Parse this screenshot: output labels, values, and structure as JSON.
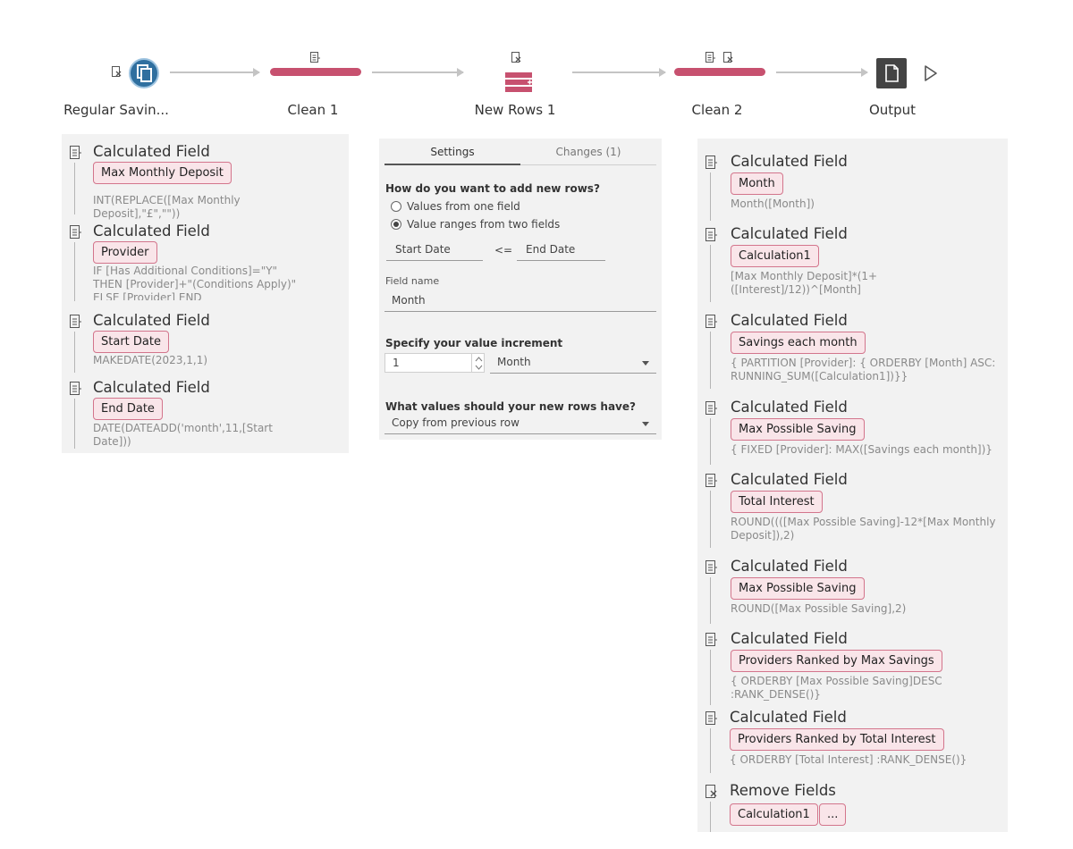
{
  "flow": {
    "nodes": [
      {
        "label": "Regular Savin..."
      },
      {
        "label": "Clean 1"
      },
      {
        "label": "New Rows 1"
      },
      {
        "label": "Clean 2"
      },
      {
        "label": "Output"
      }
    ]
  },
  "clean1": {
    "steps": [
      {
        "title": "Calculated Field",
        "pill": "Max Monthly Deposit",
        "formula": "INT(REPLACE([Max Monthly\nDeposit],\"£\",\"\"))"
      },
      {
        "title": "Calculated Field",
        "pill": "Provider",
        "formula": "IF [Has Additional Conditions]=\"Y\"\nTHEN [Provider]+\"(Conditions Apply)\"\nELSE [Provider] END"
      },
      {
        "title": "Calculated Field",
        "pill": "Start Date",
        "formula": "MAKEDATE(2023,1,1)"
      },
      {
        "title": "Calculated Field",
        "pill": "End Date",
        "formula": "DATE(DATEADD('month',11,[Start\nDate]))"
      }
    ]
  },
  "newrows": {
    "tabs": {
      "settings": "Settings",
      "changes": "Changes (1)"
    },
    "question_add": "How do you want to add new rows?",
    "option_one_field": "Values from one field",
    "option_two_fields": "Value ranges from two fields",
    "start_field": "Start Date",
    "operator": "<=",
    "end_field": "End Date",
    "field_name_label": "Field name",
    "field_name_value": "Month",
    "increment_label": "Specify your value increment",
    "increment_value": "1",
    "increment_unit": "Month",
    "values_question": "What values should your new rows have?",
    "values_option": "Copy from previous row"
  },
  "clean2": {
    "steps": [
      {
        "title": "Calculated Field",
        "pill": "Month",
        "formula": "Month([Month])"
      },
      {
        "title": "Calculated Field",
        "pill": "Calculation1",
        "formula": "[Max Monthly Deposit]*(1+\n([Interest]/12))^[Month]"
      },
      {
        "title": "Calculated Field",
        "pill": "Savings each month",
        "formula": "{ PARTITION [Provider]: { ORDERBY [Month] ASC:\nRUNNING_SUM([Calculation1])}}"
      },
      {
        "title": "Calculated Field",
        "pill": "Max Possible Saving",
        "formula": "{ FIXED [Provider]: MAX([Savings each month])}"
      },
      {
        "title": "Calculated Field",
        "pill": "Total Interest",
        "formula": "ROUND((([Max Possible Saving]-12*[Max Monthly\nDeposit]),2)"
      },
      {
        "title": "Calculated Field",
        "pill": "Max Possible Saving",
        "formula": "ROUND([Max Possible Saving],2)"
      },
      {
        "title": "Calculated Field",
        "pill": "Providers Ranked by Max Savings",
        "formula": "{ ORDERBY [Max Possible Saving]DESC\n:RANK_DENSE()}"
      },
      {
        "title": "Calculated Field",
        "pill": "Providers Ranked by Total Interest",
        "formula": "{ ORDERBY [Total Interest] :RANK_DENSE()}"
      },
      {
        "title": "Remove Fields",
        "pill": "Calculation1",
        "pill2": "..."
      }
    ]
  },
  "colors": {
    "clean": "#c7516f",
    "input": "#2f6f9f",
    "pill_bg": "#f9e5e9",
    "pill_border": "#d3758c"
  }
}
